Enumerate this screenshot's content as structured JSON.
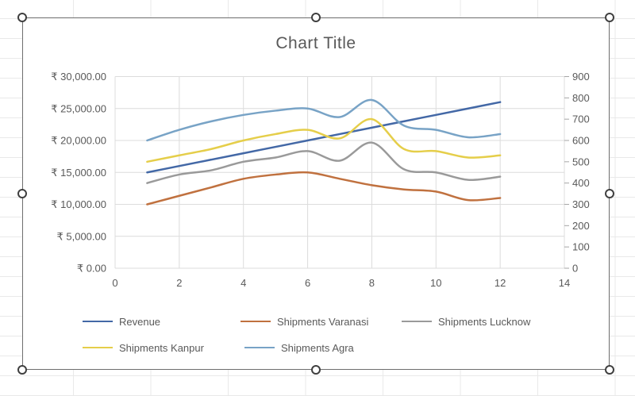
{
  "chart_data": {
    "type": "line",
    "title": "Chart Title",
    "smooth_lines": true,
    "x": [
      1,
      2,
      3,
      4,
      5,
      6,
      7,
      8,
      9,
      10,
      11,
      12
    ],
    "series": [
      {
        "name": "Revenue",
        "color": "#4368a6",
        "axis": "left",
        "values": [
          15000,
          16000,
          17000,
          18000,
          19000,
          20000,
          21000,
          22000,
          23000,
          24000,
          25000,
          26000
        ]
      },
      {
        "name": "Shipments Varanasi",
        "color": "#c0713f",
        "axis": "right",
        "values": [
          300,
          340,
          380,
          420,
          440,
          450,
          420,
          390,
          370,
          360,
          320,
          330
        ]
      },
      {
        "name": "Shipments Lucknow",
        "color": "#9a9a9a",
        "axis": "right",
        "values": [
          400,
          440,
          460,
          500,
          520,
          550,
          505,
          590,
          465,
          450,
          415,
          430
        ]
      },
      {
        "name": "Shipments Kanpur",
        "color": "#e5ce4a",
        "axis": "right",
        "values": [
          500,
          530,
          560,
          600,
          630,
          650,
          610,
          700,
          560,
          550,
          520,
          530
        ]
      },
      {
        "name": "Shipments Agra",
        "color": "#78a3c6",
        "axis": "right",
        "values": [
          600,
          650,
          690,
          720,
          740,
          750,
          710,
          790,
          670,
          650,
          615,
          630
        ]
      }
    ],
    "axes": {
      "x": {
        "min": 0,
        "max": 14,
        "ticks": [
          {
            "v": 0,
            "label": "0"
          },
          {
            "v": 2,
            "label": "2"
          },
          {
            "v": 4,
            "label": "4"
          },
          {
            "v": 6,
            "label": "6"
          },
          {
            "v": 8,
            "label": "8"
          },
          {
            "v": 10,
            "label": "10"
          },
          {
            "v": 12,
            "label": "12"
          },
          {
            "v": 14,
            "label": "14"
          }
        ]
      },
      "left": {
        "min": 0,
        "max": 30000,
        "ticks": [
          {
            "v": 0,
            "label": "₹ 0.00"
          },
          {
            "v": 5000,
            "label": "₹ 5,000.00"
          },
          {
            "v": 10000,
            "label": "₹ 10,000.00"
          },
          {
            "v": 15000,
            "label": "₹ 15,000.00"
          },
          {
            "v": 20000,
            "label": "₹ 20,000.00"
          },
          {
            "v": 25000,
            "label": "₹ 25,000.00"
          },
          {
            "v": 30000,
            "label": "₹ 30,000.00"
          }
        ]
      },
      "right": {
        "min": 0,
        "max": 900,
        "ticks": [
          {
            "v": 0,
            "label": "0"
          },
          {
            "v": 100,
            "label": "100"
          },
          {
            "v": 200,
            "label": "200"
          },
          {
            "v": 300,
            "label": "300"
          },
          {
            "v": 400,
            "label": "400"
          },
          {
            "v": 500,
            "label": "500"
          },
          {
            "v": 600,
            "label": "600"
          },
          {
            "v": 700,
            "label": "700"
          },
          {
            "v": 800,
            "label": "800"
          },
          {
            "v": 900,
            "label": "900"
          }
        ]
      }
    },
    "legend": {
      "position": "bottom"
    },
    "grid": true
  },
  "styles": {
    "text_color": "#595959",
    "gridline_color": "#dcdcdc",
    "axis_tick_color": "#a6a6a6",
    "chart_border_color": "#6e6e6e",
    "selection_handle_color": "#3f3f3f",
    "sheet_grid_color": "#e9e9e9",
    "chart_background": "#ffffff"
  }
}
